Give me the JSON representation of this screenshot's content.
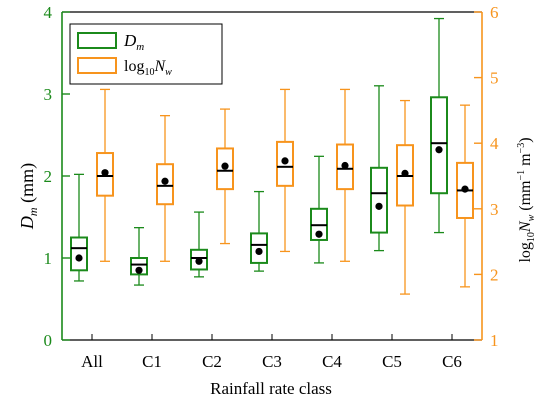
{
  "chart_data": {
    "type": "box",
    "xlabel": "Rainfall rate class",
    "categories": [
      "All",
      "C1",
      "C2",
      "C3",
      "C4",
      "C5",
      "C6"
    ],
    "y_left": {
      "label_main": "D",
      "label_sub": "m",
      "label_unit": " (mm)",
      "range": [
        0,
        4
      ],
      "ticks": [
        0,
        1,
        2,
        3,
        4
      ],
      "color": "#1b8a1b"
    },
    "y_right": {
      "label_prefix": "log",
      "label_sub1": "10",
      "label_main": "N",
      "label_sub2": "w",
      "label_unit_open": " (mm",
      "label_unit_exp1": "−1",
      "label_unit_mid": " m",
      "label_unit_exp2": "−3",
      "label_unit_close": ")",
      "range": [
        1,
        6
      ],
      "ticks": [
        1,
        2,
        3,
        4,
        5,
        6
      ],
      "color": "#f7941d"
    },
    "legend": {
      "position": "top-left",
      "entries": [
        {
          "main": "D",
          "sub": "m",
          "color": "#1b8a1b"
        },
        {
          "prefix": "log",
          "sub1": "10",
          "main": "N",
          "sub2": "w",
          "color": "#f7941d"
        }
      ]
    },
    "series": [
      {
        "axis": "left",
        "color": "#1b8a1b",
        "boxes": [
          {
            "whisker_low": 0.72,
            "q1": 0.85,
            "median": 1.12,
            "q3": 1.25,
            "whisker_high": 2.02,
            "mean": 1.0
          },
          {
            "whisker_low": 0.67,
            "q1": 0.8,
            "median": 0.92,
            "q3": 1.0,
            "whisker_high": 1.37,
            "mean": 0.85
          },
          {
            "whisker_low": 0.77,
            "q1": 0.86,
            "median": 1.0,
            "q3": 1.1,
            "whisker_high": 1.56,
            "mean": 0.96
          },
          {
            "whisker_low": 0.84,
            "q1": 0.94,
            "median": 1.16,
            "q3": 1.3,
            "whisker_high": 1.81,
            "mean": 1.08
          },
          {
            "whisker_low": 0.94,
            "q1": 1.22,
            "median": 1.4,
            "q3": 1.6,
            "whisker_high": 2.24,
            "mean": 1.29
          },
          {
            "whisker_low": 1.09,
            "q1": 1.31,
            "median": 1.79,
            "q3": 2.1,
            "whisker_high": 3.1,
            "mean": 1.63
          },
          {
            "whisker_low": 1.31,
            "q1": 1.79,
            "median": 2.4,
            "q3": 2.96,
            "whisker_high": 3.92,
            "mean": 2.32
          }
        ]
      },
      {
        "axis": "right",
        "color": "#f7941d",
        "boxes": [
          {
            "whisker_low": 2.2,
            "q1": 3.2,
            "median": 3.5,
            "q3": 3.85,
            "whisker_high": 4.82,
            "mean": 3.55
          },
          {
            "whisker_low": 2.2,
            "q1": 3.07,
            "median": 3.35,
            "q3": 3.68,
            "whisker_high": 4.42,
            "mean": 3.42
          },
          {
            "whisker_low": 2.47,
            "q1": 3.3,
            "median": 3.58,
            "q3": 3.92,
            "whisker_high": 4.52,
            "mean": 3.65
          },
          {
            "whisker_low": 2.35,
            "q1": 3.35,
            "median": 3.64,
            "q3": 4.02,
            "whisker_high": 4.82,
            "mean": 3.73
          },
          {
            "whisker_low": 2.2,
            "q1": 3.3,
            "median": 3.61,
            "q3": 3.98,
            "whisker_high": 4.82,
            "mean": 3.66
          },
          {
            "whisker_low": 1.7,
            "q1": 3.05,
            "median": 3.5,
            "q3": 3.97,
            "whisker_high": 4.65,
            "mean": 3.54
          },
          {
            "whisker_low": 1.81,
            "q1": 2.86,
            "median": 3.28,
            "q3": 3.7,
            "whisker_high": 4.58,
            "mean": 3.3
          }
        ]
      }
    ]
  }
}
